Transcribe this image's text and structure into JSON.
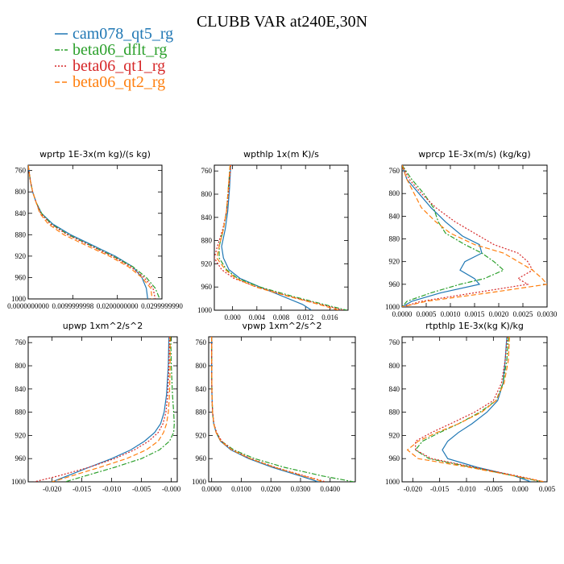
{
  "title": "CLUBB VAR at240E,30N",
  "legend": [
    {
      "name": "cam078_qt5_rg",
      "color": "#1f77b4",
      "dash": ""
    },
    {
      "name": "beta06_dflt_rg",
      "color": "#2ca02c",
      "dash": "6,2,2,2"
    },
    {
      "name": "beta06_qt1_rg",
      "color": "#d62728",
      "dash": "2,2"
    },
    {
      "name": "beta06_qt2_rg",
      "color": "#ff7f0e",
      "dash": "6,3"
    }
  ],
  "chart_data": [
    {
      "type": "line",
      "title": "wprtp  1E-3x(m kg)/(s kg)",
      "xlim": [
        0.0,
        0.03
      ],
      "xticks": [
        0.0,
        0.01,
        0.02,
        0.03
      ],
      "xtick_labels": [
        "0.0000000000",
        "0.0099999998",
        "0.0200000000",
        "0.0299999990"
      ],
      "ylim": [
        750,
        1000
      ],
      "yticks": [
        760,
        800,
        840,
        880,
        920,
        960,
        1000
      ],
      "ytick_labels": [
        "760",
        "800",
        "840",
        "880",
        "920",
        "960",
        "1000"
      ],
      "y": [
        750,
        780,
        800,
        820,
        840,
        860,
        880,
        900,
        920,
        940,
        960,
        980,
        1000
      ],
      "series": [
        {
          "name": "cam078_qt5_rg",
          "x": [
            0.0,
            0.0005,
            0.001,
            0.0018,
            0.003,
            0.0055,
            0.0095,
            0.0145,
            0.0195,
            0.0235,
            0.0255,
            0.0265,
            0.0268
          ]
        },
        {
          "name": "beta06_dflt_rg",
          "x": [
            0.0,
            0.0005,
            0.001,
            0.0018,
            0.003,
            0.0052,
            0.009,
            0.014,
            0.019,
            0.0235,
            0.0265,
            0.0285,
            0.0295
          ]
        },
        {
          "name": "beta06_qt1_rg",
          "x": [
            0.0,
            0.0005,
            0.001,
            0.0018,
            0.0028,
            0.005,
            0.0088,
            0.0138,
            0.0188,
            0.023,
            0.026,
            0.028,
            0.0285
          ]
        },
        {
          "name": "beta06_qt2_rg",
          "x": [
            0.0,
            0.0005,
            0.001,
            0.0018,
            0.0026,
            0.0045,
            0.008,
            0.013,
            0.0182,
            0.0225,
            0.0255,
            0.0275,
            0.0278
          ]
        }
      ]
    },
    {
      "type": "line",
      "title": "wpthlp  1x(m K)/s",
      "xlim": [
        -0.003,
        0.019
      ],
      "xticks": [
        0.0,
        0.004,
        0.008,
        0.012,
        0.016
      ],
      "xtick_labels": [
        "0.000",
        "0.004",
        "0.008",
        "0.012",
        "0.016"
      ],
      "ylim": [
        750,
        1000
      ],
      "yticks": [
        760,
        800,
        840,
        880,
        920,
        960,
        1000
      ],
      "ytick_labels": [
        "760",
        "800",
        "840",
        "880",
        "920",
        "960",
        "1000"
      ],
      "y": [
        750,
        790,
        830,
        860,
        890,
        910,
        930,
        945,
        960,
        975,
        990,
        1000
      ],
      "series": [
        {
          "name": "cam078_qt5_rg",
          "x": [
            -0.0003,
            -0.0005,
            -0.0008,
            -0.0012,
            -0.0018,
            -0.0015,
            -0.0006,
            0.0012,
            0.0045,
            0.008,
            0.0115,
            0.013
          ]
        },
        {
          "name": "beta06_dflt_rg",
          "x": [
            -0.0004,
            -0.0007,
            -0.001,
            -0.0015,
            -0.0022,
            -0.0022,
            -0.001,
            0.0008,
            0.0045,
            0.0095,
            0.015,
            0.0188
          ]
        },
        {
          "name": "beta06_qt1_rg",
          "x": [
            -0.0003,
            -0.0006,
            -0.001,
            -0.0016,
            -0.0025,
            -0.003,
            -0.0018,
            0.0002,
            0.004,
            0.009,
            0.0145,
            0.0182
          ]
        },
        {
          "name": "beta06_qt2_rg",
          "x": [
            -0.0004,
            -0.0007,
            -0.001,
            -0.0015,
            -0.0022,
            -0.0026,
            -0.0012,
            0.0005,
            0.0038,
            0.0088,
            0.0142,
            0.0175
          ]
        }
      ]
    },
    {
      "type": "line",
      "title": "wprcp  1E-3x(m/s) (kg/kg)",
      "xlim": [
        0.0,
        0.003
      ],
      "xticks": [
        0.0,
        0.0005,
        0.001,
        0.0015,
        0.002,
        0.0025,
        0.003
      ],
      "xtick_labels": [
        "0.0000",
        "0.0005",
        "0.0010",
        "0.0015",
        "0.0020",
        "0.0025",
        "0.0030"
      ],
      "ylim": [
        750,
        1000
      ],
      "yticks": [
        760,
        800,
        840,
        880,
        920,
        960,
        1000
      ],
      "ytick_labels": [
        "760",
        "800",
        "840",
        "880",
        "920",
        "960",
        "1000"
      ],
      "series": [
        {
          "name": "cam078_qt5_rg",
          "y": [
            750,
            775,
            800,
            825,
            850,
            875,
            890,
            905,
            920,
            935,
            950,
            960,
            975,
            990,
            1000
          ],
          "x": [
            0.0,
            0.0001,
            0.00035,
            0.0006,
            0.0009,
            0.00125,
            0.0016,
            0.00165,
            0.0013,
            0.0012,
            0.0015,
            0.0016,
            0.0008,
            0.0002,
            0.0
          ]
        },
        {
          "name": "beta06_dflt_rg",
          "y": [
            750,
            775,
            800,
            825,
            850,
            870,
            890,
            905,
            920,
            935,
            950,
            960,
            975,
            990,
            1000
          ],
          "x": [
            0.0,
            0.0002,
            0.00045,
            0.00065,
            0.00075,
            0.0009,
            0.0013,
            0.00165,
            0.0019,
            0.0021,
            0.0017,
            0.0012,
            0.0006,
            0.0001,
            0.0
          ]
        },
        {
          "name": "beta06_qt1_rg",
          "y": [
            750,
            775,
            800,
            825,
            850,
            870,
            890,
            905,
            920,
            935,
            950,
            960,
            975,
            990,
            1000
          ],
          "x": [
            0.0,
            0.00015,
            0.0004,
            0.0007,
            0.0011,
            0.0015,
            0.0019,
            0.0024,
            0.0026,
            0.0027,
            0.0024,
            0.0026,
            0.0015,
            0.0004,
            0.0
          ]
        },
        {
          "name": "beta06_qt2_rg",
          "y": [
            750,
            775,
            800,
            825,
            850,
            870,
            890,
            905,
            920,
            935,
            950,
            960,
            975,
            990,
            1000
          ],
          "x": [
            0.0,
            0.0001,
            0.00025,
            0.0004,
            0.0007,
            0.001,
            0.0015,
            0.0021,
            0.0024,
            0.0027,
            0.0029,
            0.003,
            0.0018,
            0.0005,
            0.0
          ]
        }
      ]
    },
    {
      "type": "line",
      "title": "upwp  1xm^2/s^2",
      "xlim": [
        -0.024,
        0.001
      ],
      "xticks": [
        -0.02,
        -0.015,
        -0.01,
        -0.005,
        0.0
      ],
      "xtick_labels": [
        "-0.020",
        "-0.015",
        "-0.010",
        "-0.005",
        "-0.000"
      ],
      "ylim": [
        750,
        1000
      ],
      "yticks": [
        760,
        800,
        840,
        880,
        920,
        960,
        1000
      ],
      "ytick_labels": [
        "760",
        "800",
        "840",
        "880",
        "920",
        "960",
        "1000"
      ],
      "y": [
        750,
        800,
        850,
        880,
        900,
        915,
        930,
        945,
        960,
        975,
        990,
        1000
      ],
      "series": [
        {
          "name": "cam078_qt5_rg",
          "x": [
            -0.0004,
            -0.0005,
            -0.0008,
            -0.0012,
            -0.0018,
            -0.0028,
            -0.0045,
            -0.0068,
            -0.01,
            -0.0138,
            -0.0175,
            -0.02
          ]
        },
        {
          "name": "beta06_dflt_rg",
          "x": [
            -0.0001,
            0.0,
            0.0002,
            0.0004,
            0.0005,
            0.0004,
            -0.0003,
            -0.002,
            -0.005,
            -0.0095,
            -0.0145,
            -0.0178
          ]
        },
        {
          "name": "beta06_qt1_rg",
          "x": [
            -0.0003,
            -0.0004,
            -0.0006,
            -0.0009,
            -0.0014,
            -0.0022,
            -0.0038,
            -0.0062,
            -0.0095,
            -0.0138,
            -0.019,
            -0.023
          ]
        },
        {
          "name": "beta06_qt2_rg",
          "x": [
            -0.0002,
            -0.0002,
            -0.0003,
            -0.0005,
            -0.0008,
            -0.0013,
            -0.0022,
            -0.0042,
            -0.0075,
            -0.012,
            -0.0168,
            -0.02
          ]
        }
      ]
    },
    {
      "type": "line",
      "title": "vpwp  1xm^2/s^2",
      "xlim": [
        -0.001,
        0.0485
      ],
      "xticks": [
        0.0,
        0.01,
        0.02,
        0.03,
        0.04
      ],
      "xtick_labels": [
        "0.0000",
        "0.0100",
        "0.0200",
        "0.0300",
        "0.0400"
      ],
      "ylim": [
        750,
        1000
      ],
      "yticks": [
        760,
        800,
        840,
        880,
        920,
        960,
        1000
      ],
      "ytick_labels": [
        "760",
        "800",
        "840",
        "880",
        "920",
        "960",
        "1000"
      ],
      "y": [
        750,
        800,
        850,
        880,
        900,
        915,
        930,
        945,
        960,
        975,
        990,
        1000
      ],
      "series": [
        {
          "name": "cam078_qt5_rg",
          "x": [
            0.0,
            0.0,
            0.0001,
            0.0003,
            0.0007,
            0.0015,
            0.003,
            0.0065,
            0.0125,
            0.0205,
            0.03,
            0.036
          ]
        },
        {
          "name": "beta06_dflt_rg",
          "x": [
            0.0,
            0.0,
            0.0001,
            0.0003,
            0.0007,
            0.0016,
            0.0033,
            0.0075,
            0.0145,
            0.0245,
            0.0375,
            0.048
          ]
        },
        {
          "name": "beta06_qt1_rg",
          "x": [
            0.0,
            0.0,
            0.0001,
            0.0003,
            0.0008,
            0.0017,
            0.0034,
            0.007,
            0.0132,
            0.0215,
            0.0315,
            0.0385
          ]
        },
        {
          "name": "beta06_qt2_rg",
          "x": [
            0.0,
            0.0,
            0.0001,
            0.0003,
            0.0007,
            0.0015,
            0.0031,
            0.0068,
            0.013,
            0.0212,
            0.031,
            0.038
          ]
        }
      ]
    },
    {
      "type": "line",
      "title": "rtpthlp  1E-3x(kg K)/kg",
      "xlim": [
        -0.022,
        0.005
      ],
      "xticks": [
        -0.02,
        -0.015,
        -0.01,
        -0.005,
        0.0,
        0.005
      ],
      "xtick_labels": [
        "-0.020",
        "-0.015",
        "-0.010",
        "-0.005",
        "0.000",
        "0.005"
      ],
      "ylim": [
        750,
        1000
      ],
      "yticks": [
        760,
        800,
        840,
        880,
        920,
        960,
        1000
      ],
      "ytick_labels": [
        "760",
        "800",
        "840",
        "880",
        "920",
        "960",
        "1000"
      ],
      "series": [
        {
          "name": "cam078_qt5_rg",
          "y": [
            750,
            790,
            830,
            860,
            880,
            900,
            915,
            930,
            945,
            960,
            975,
            990,
            1000
          ],
          "x": [
            -0.0025,
            -0.0028,
            -0.0032,
            -0.0042,
            -0.0062,
            -0.009,
            -0.0115,
            -0.0135,
            -0.0145,
            -0.0135,
            -0.008,
            -0.001,
            0.002
          ]
        },
        {
          "name": "beta06_dflt_rg",
          "y": [
            750,
            790,
            830,
            860,
            880,
            900,
            915,
            930,
            945,
            960,
            975,
            990,
            1000
          ],
          "x": [
            -0.0022,
            -0.0025,
            -0.0032,
            -0.0045,
            -0.0075,
            -0.0115,
            -0.015,
            -0.0182,
            -0.0195,
            -0.017,
            -0.009,
            -0.001,
            0.004
          ]
        },
        {
          "name": "beta06_qt1_rg",
          "y": [
            750,
            790,
            830,
            860,
            880,
            900,
            915,
            930,
            945,
            960,
            975,
            990,
            1000
          ],
          "x": [
            -0.0024,
            -0.0028,
            -0.0035,
            -0.005,
            -0.0085,
            -0.013,
            -0.0165,
            -0.0195,
            -0.0195,
            -0.0165,
            -0.0085,
            -0.0005,
            0.0045
          ]
        },
        {
          "name": "beta06_qt2_rg",
          "y": [
            750,
            790,
            830,
            860,
            880,
            900,
            915,
            930,
            945,
            960,
            975,
            990,
            1000
          ],
          "x": [
            -0.002,
            -0.0022,
            -0.003,
            -0.0045,
            -0.0072,
            -0.0115,
            -0.0155,
            -0.019,
            -0.021,
            -0.019,
            -0.0095,
            -0.001,
            0.0045
          ]
        }
      ]
    }
  ]
}
